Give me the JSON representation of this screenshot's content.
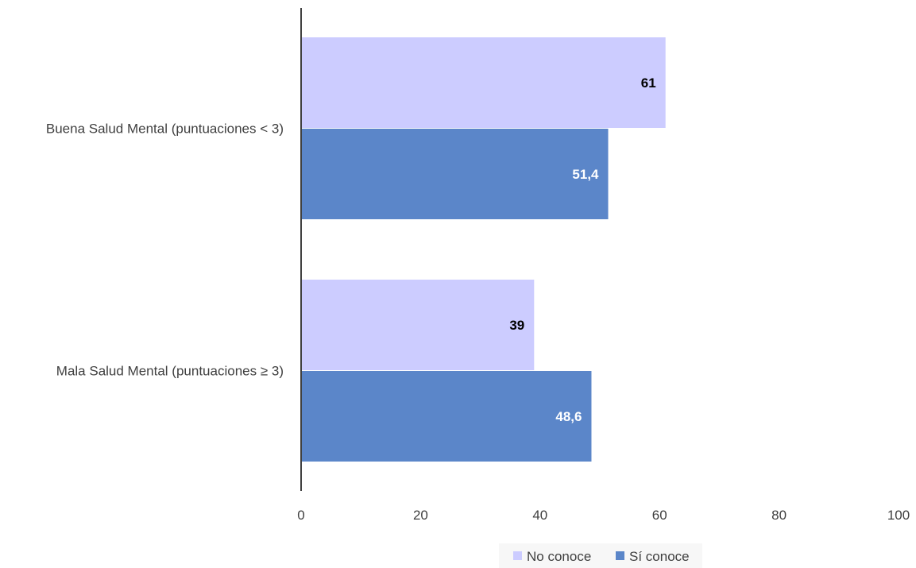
{
  "chart_data": {
    "type": "bar",
    "orientation": "horizontal",
    "categories": [
      "Buena Salud Mental (puntuaciones < 3)",
      "Mala Salud Mental (puntuaciones ≥ 3)"
    ],
    "series": [
      {
        "name": "No conoce",
        "color": "#ccccff",
        "label_color": "#000000",
        "values": [
          61,
          39
        ],
        "labels": [
          "61",
          "39"
        ]
      },
      {
        "name": "Sí conoce",
        "color": "#5b86c9",
        "label_color": "#ffffff",
        "values": [
          51.4,
          48.6
        ],
        "labels": [
          "51,4",
          "48,6"
        ]
      }
    ],
    "xlim": [
      0,
      100
    ],
    "xticks": [
      0,
      20,
      40,
      60,
      80,
      100
    ],
    "xtick_labels": [
      "0",
      "20",
      "40",
      "60",
      "80",
      "100"
    ],
    "grid": false,
    "legend_position": "bottom"
  }
}
